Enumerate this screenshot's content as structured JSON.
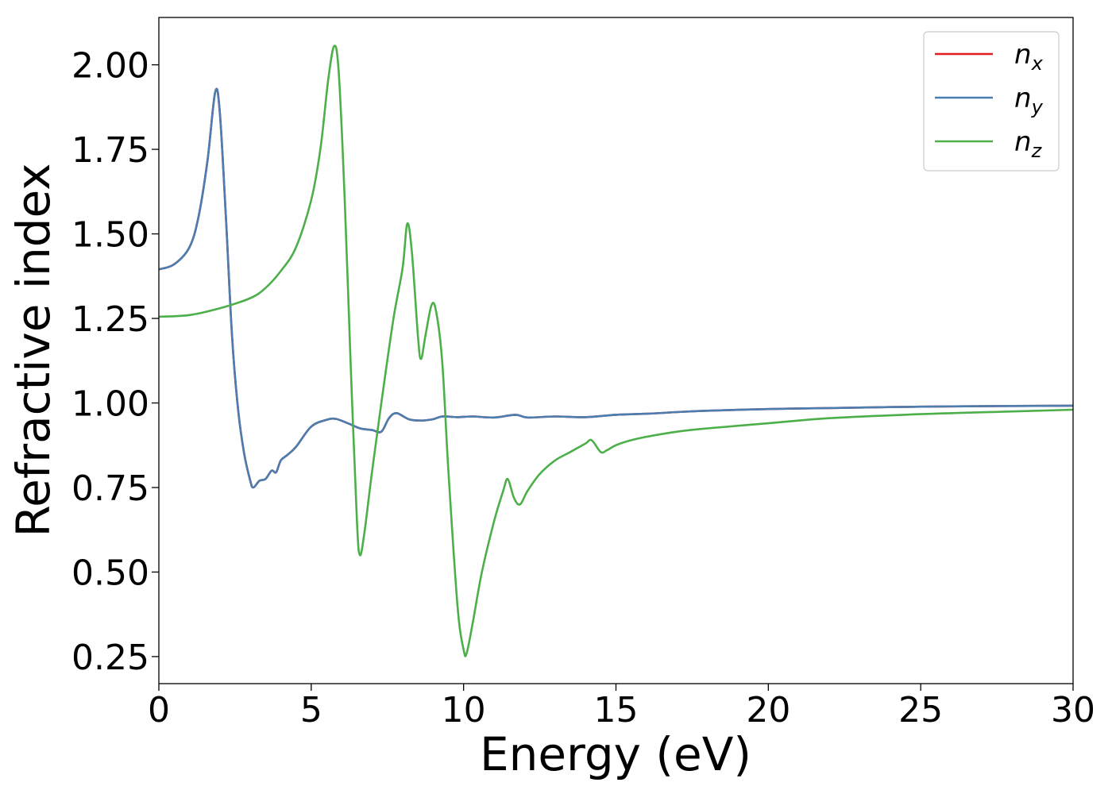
{
  "chart_data": {
    "type": "line",
    "xlabel": "Energy (eV)",
    "ylabel": "Refractive index",
    "xlim": [
      0,
      30
    ],
    "ylim": [
      0.17,
      2.14
    ],
    "x_ticks": [
      0,
      5,
      10,
      15,
      20,
      25,
      30
    ],
    "x_tick_labels": [
      "0",
      "5",
      "10",
      "15",
      "20",
      "25",
      "30"
    ],
    "y_ticks": [
      0.25,
      0.5,
      0.75,
      1.0,
      1.25,
      1.5,
      1.75,
      2.0
    ],
    "y_tick_labels": [
      "0.25",
      "0.50",
      "0.75",
      "1.00",
      "1.25",
      "1.50",
      "1.75",
      "2.00"
    ],
    "grid": false,
    "legend_position": "top-right",
    "series": [
      {
        "name": "n",
        "subscript": "x",
        "color": "#e41a1c",
        "points": [
          [
            0,
            1.395
          ],
          [
            0.5,
            1.41
          ],
          [
            1.0,
            1.46
          ],
          [
            1.3,
            1.55
          ],
          [
            1.6,
            1.72
          ],
          [
            1.85,
            1.92
          ],
          [
            2.0,
            1.86
          ],
          [
            2.2,
            1.55
          ],
          [
            2.4,
            1.2
          ],
          [
            2.6,
            0.98
          ],
          [
            2.8,
            0.85
          ],
          [
            3.0,
            0.77
          ],
          [
            3.1,
            0.75
          ],
          [
            3.3,
            0.77
          ],
          [
            3.5,
            0.775
          ],
          [
            3.7,
            0.8
          ],
          [
            3.85,
            0.795
          ],
          [
            4.0,
            0.83
          ],
          [
            4.2,
            0.845
          ],
          [
            4.5,
            0.87
          ],
          [
            5.0,
            0.93
          ],
          [
            5.5,
            0.95
          ],
          [
            5.8,
            0.953
          ],
          [
            6.2,
            0.94
          ],
          [
            6.6,
            0.925
          ],
          [
            7.0,
            0.92
          ],
          [
            7.3,
            0.915
          ],
          [
            7.55,
            0.955
          ],
          [
            7.8,
            0.97
          ],
          [
            8.2,
            0.952
          ],
          [
            8.6,
            0.948
          ],
          [
            9.0,
            0.952
          ],
          [
            9.3,
            0.96
          ],
          [
            9.8,
            0.958
          ],
          [
            10.3,
            0.96
          ],
          [
            11.0,
            0.957
          ],
          [
            11.7,
            0.965
          ],
          [
            12.1,
            0.957
          ],
          [
            13.0,
            0.96
          ],
          [
            14.0,
            0.958
          ],
          [
            15.0,
            0.965
          ],
          [
            16.0,
            0.968
          ],
          [
            17.0,
            0.973
          ],
          [
            18.0,
            0.977
          ],
          [
            20.0,
            0.982
          ],
          [
            22.0,
            0.985
          ],
          [
            25.0,
            0.989
          ],
          [
            28.0,
            0.991
          ],
          [
            30.0,
            0.992
          ]
        ]
      },
      {
        "name": "n",
        "subscript": "y",
        "color": "#4a7db0",
        "points": [
          [
            0,
            1.395
          ],
          [
            0.5,
            1.41
          ],
          [
            1.0,
            1.46
          ],
          [
            1.3,
            1.55
          ],
          [
            1.6,
            1.72
          ],
          [
            1.85,
            1.92
          ],
          [
            2.0,
            1.86
          ],
          [
            2.2,
            1.55
          ],
          [
            2.4,
            1.2
          ],
          [
            2.6,
            0.98
          ],
          [
            2.8,
            0.85
          ],
          [
            3.0,
            0.77
          ],
          [
            3.1,
            0.75
          ],
          [
            3.3,
            0.77
          ],
          [
            3.5,
            0.775
          ],
          [
            3.7,
            0.8
          ],
          [
            3.85,
            0.795
          ],
          [
            4.0,
            0.83
          ],
          [
            4.2,
            0.845
          ],
          [
            4.5,
            0.87
          ],
          [
            5.0,
            0.93
          ],
          [
            5.5,
            0.95
          ],
          [
            5.8,
            0.953
          ],
          [
            6.2,
            0.94
          ],
          [
            6.6,
            0.925
          ],
          [
            7.0,
            0.92
          ],
          [
            7.3,
            0.915
          ],
          [
            7.55,
            0.955
          ],
          [
            7.8,
            0.97
          ],
          [
            8.2,
            0.952
          ],
          [
            8.6,
            0.948
          ],
          [
            9.0,
            0.952
          ],
          [
            9.3,
            0.96
          ],
          [
            9.8,
            0.958
          ],
          [
            10.3,
            0.96
          ],
          [
            11.0,
            0.957
          ],
          [
            11.7,
            0.965
          ],
          [
            12.1,
            0.957
          ],
          [
            13.0,
            0.96
          ],
          [
            14.0,
            0.958
          ],
          [
            15.0,
            0.965
          ],
          [
            16.0,
            0.968
          ],
          [
            17.0,
            0.973
          ],
          [
            18.0,
            0.977
          ],
          [
            20.0,
            0.982
          ],
          [
            22.0,
            0.985
          ],
          [
            25.0,
            0.989
          ],
          [
            28.0,
            0.991
          ],
          [
            30.0,
            0.992
          ]
        ]
      },
      {
        "name": "n",
        "subscript": "z",
        "color": "#4daf4a",
        "points": [
          [
            0,
            1.255
          ],
          [
            1.0,
            1.26
          ],
          [
            2.0,
            1.28
          ],
          [
            3.0,
            1.31
          ],
          [
            3.5,
            1.34
          ],
          [
            4.0,
            1.39
          ],
          [
            4.5,
            1.46
          ],
          [
            5.0,
            1.6
          ],
          [
            5.3,
            1.75
          ],
          [
            5.55,
            1.95
          ],
          [
            5.75,
            2.055
          ],
          [
            5.9,
            1.98
          ],
          [
            6.1,
            1.6
          ],
          [
            6.3,
            1.1
          ],
          [
            6.5,
            0.65
          ],
          [
            6.6,
            0.55
          ],
          [
            6.75,
            0.62
          ],
          [
            7.0,
            0.8
          ],
          [
            7.3,
            1.0
          ],
          [
            7.7,
            1.25
          ],
          [
            8.0,
            1.4
          ],
          [
            8.15,
            1.53
          ],
          [
            8.3,
            1.45
          ],
          [
            8.5,
            1.2
          ],
          [
            8.6,
            1.13
          ],
          [
            8.75,
            1.2
          ],
          [
            8.95,
            1.29
          ],
          [
            9.1,
            1.27
          ],
          [
            9.3,
            1.12
          ],
          [
            9.5,
            0.8
          ],
          [
            9.8,
            0.4
          ],
          [
            10.0,
            0.27
          ],
          [
            10.1,
            0.26
          ],
          [
            10.3,
            0.35
          ],
          [
            10.6,
            0.5
          ],
          [
            11.0,
            0.65
          ],
          [
            11.3,
            0.74
          ],
          [
            11.45,
            0.775
          ],
          [
            11.65,
            0.72
          ],
          [
            11.85,
            0.7
          ],
          [
            12.1,
            0.74
          ],
          [
            12.5,
            0.79
          ],
          [
            13.0,
            0.83
          ],
          [
            13.5,
            0.855
          ],
          [
            14.0,
            0.88
          ],
          [
            14.2,
            0.89
          ],
          [
            14.5,
            0.855
          ],
          [
            14.7,
            0.86
          ],
          [
            15.0,
            0.875
          ],
          [
            15.5,
            0.89
          ],
          [
            16.0,
            0.9
          ],
          [
            17.0,
            0.915
          ],
          [
            18.0,
            0.925
          ],
          [
            20.0,
            0.94
          ],
          [
            22.0,
            0.955
          ],
          [
            25.0,
            0.967
          ],
          [
            28.0,
            0.975
          ],
          [
            30.0,
            0.98
          ]
        ]
      }
    ]
  }
}
